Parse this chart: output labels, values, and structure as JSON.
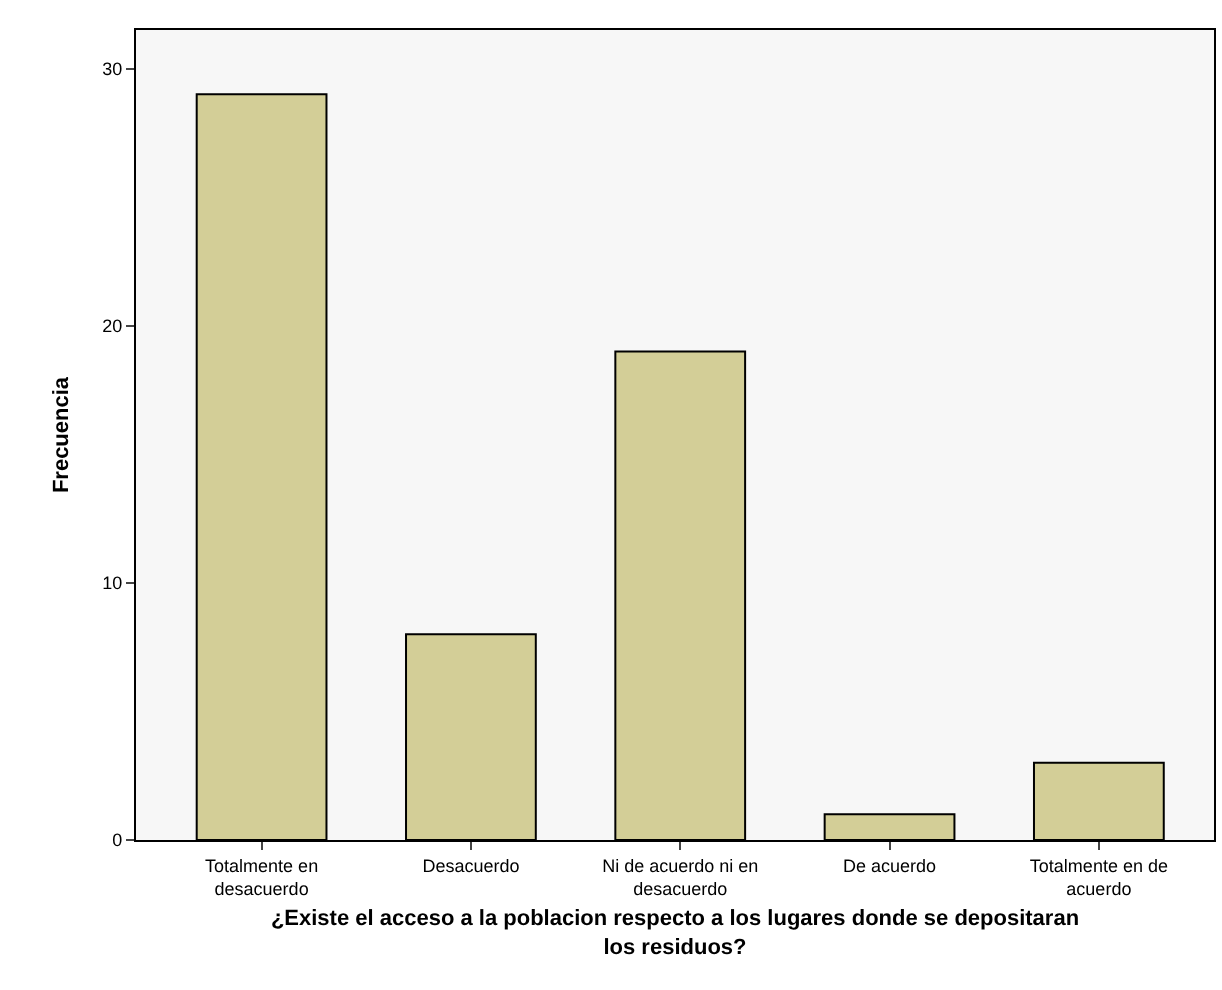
{
  "chart_data": {
    "type": "bar",
    "categories": [
      "Totalmente en\ndesacuerdo",
      "Desacuerdo",
      "Ni de acuerdo ni en\ndesacuerdo",
      "De acuerdo",
      "Totalmente en de\nacuerdo"
    ],
    "values": [
      29,
      8,
      19,
      1,
      3
    ],
    "color": "#d3ce97",
    "xlabel": "¿Existe el acceso a la poblacion respecto a los lugares donde se depositaran\nlos residuos?",
    "ylabel": "Frecuencia",
    "ylim": [
      0,
      31.5
    ],
    "yticks": [
      0,
      10,
      20,
      30
    ],
    "grid": false,
    "legend": false
  }
}
